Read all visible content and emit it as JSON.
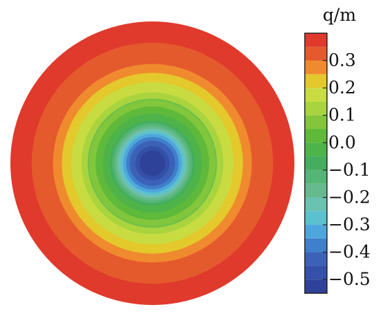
{
  "chart_data": {
    "type": "heatmap",
    "description_kind": "filled contour on a disk",
    "colorbar": {
      "title": "q/m",
      "ticks": [
        0.3,
        0.2,
        0.1,
        0.0,
        -0.1,
        -0.2,
        -0.3,
        -0.4,
        -0.5
      ],
      "tick_labels": [
        "0.3",
        "0.2",
        "0.1",
        "0.0",
        "−0.1",
        "−0.2",
        "−0.3",
        "−0.4",
        "−0.5"
      ],
      "range": [
        -0.55,
        0.4
      ]
    },
    "levels": [
      {
        "min": 0.35,
        "max": 0.4,
        "color": "#e03a2c"
      },
      {
        "min": 0.3,
        "max": 0.35,
        "color": "#e45a2c"
      },
      {
        "min": 0.25,
        "max": 0.3,
        "color": "#f08a2e"
      },
      {
        "min": 0.2,
        "max": 0.25,
        "color": "#e3c92b"
      },
      {
        "min": 0.15,
        "max": 0.2,
        "color": "#c8dc42"
      },
      {
        "min": 0.1,
        "max": 0.15,
        "color": "#a9d43e"
      },
      {
        "min": 0.05,
        "max": 0.1,
        "color": "#82c63c"
      },
      {
        "min": 0.0,
        "max": 0.05,
        "color": "#5fb93a"
      },
      {
        "min": -0.05,
        "max": 0.0,
        "color": "#4eb44a"
      },
      {
        "min": -0.1,
        "max": -0.05,
        "color": "#45ae5e"
      },
      {
        "min": -0.15,
        "max": -0.1,
        "color": "#55b576"
      },
      {
        "min": -0.2,
        "max": -0.15,
        "color": "#66ba8e"
      },
      {
        "min": -0.25,
        "max": -0.2,
        "color": "#6cc2b0"
      },
      {
        "min": -0.3,
        "max": -0.25,
        "color": "#5cc1cf"
      },
      {
        "min": -0.35,
        "max": -0.3,
        "color": "#4ea7dc"
      },
      {
        "min": -0.4,
        "max": -0.35,
        "color": "#3f7fcb"
      },
      {
        "min": -0.45,
        "max": -0.4,
        "color": "#3b62b7"
      },
      {
        "min": -0.5,
        "max": -0.45,
        "color": "#3450a8"
      },
      {
        "min": -0.55,
        "max": -0.5,
        "color": "#2f4299"
      }
    ],
    "radial_profile": [
      {
        "r": 0.0,
        "value": -0.52
      },
      {
        "r": 0.1,
        "value": -0.47
      },
      {
        "r": 0.15,
        "value": -0.42
      },
      {
        "r": 0.2,
        "value": -0.32
      },
      {
        "r": 0.3,
        "value": -0.05
      },
      {
        "r": 0.4,
        "value": 0.05
      },
      {
        "r": 0.5,
        "value": 0.15
      },
      {
        "r": 0.6,
        "value": 0.22
      },
      {
        "r": 0.7,
        "value": 0.3
      },
      {
        "r": 0.8,
        "value": 0.34
      },
      {
        "r": 1.0,
        "value": 0.38
      }
    ]
  }
}
